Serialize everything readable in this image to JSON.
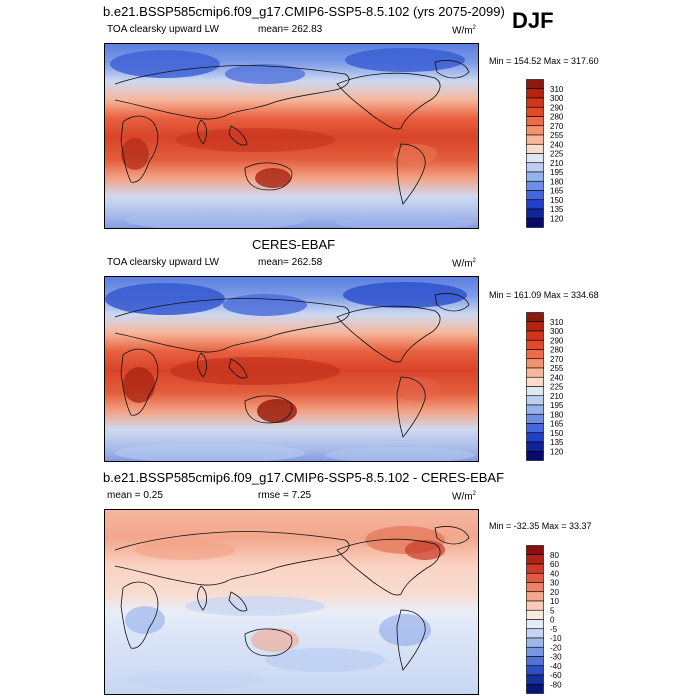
{
  "season": "DJF",
  "panels": [
    {
      "title": "b.e21.BSSP585cmip6.f09_g17.CMIP6-SSP5-8.5.102 (yrs 2075-2099)",
      "variable": "TOA clearsky upward LW",
      "mean_label": "mean= 262.83",
      "units": "W/m",
      "units_sup": "2",
      "minmax": "Min = 154.52 Max = 317.60"
    },
    {
      "title": "CERES-EBAF",
      "variable": "TOA clearsky upward LW",
      "mean_label": "mean= 262.58",
      "units": "W/m",
      "units_sup": "2",
      "minmax": "Min = 161.09 Max = 334.68"
    },
    {
      "title": "b.e21.BSSP585cmip6.f09_g17.CMIP6-SSP5-8.5.102 - CERES-EBAF",
      "variable": "mean =   0.25",
      "mean_label": "rmse =   7.25",
      "units": "W/m",
      "units_sup": "2",
      "minmax": "Min = -32.35 Max =  33.37"
    }
  ],
  "chart_data": [
    {
      "type": "heatmap",
      "title": "b.e21.BSSP585cmip6.f09_g17.CMIP6-SSP5-8.5.102 (yrs 2075-2099)",
      "field": "TOA clearsky upward LW",
      "mean": 262.83,
      "min": 154.52,
      "max": 317.6,
      "units": "W/m2",
      "colorbar_levels": [
        310,
        300,
        290,
        280,
        270,
        255,
        240,
        225,
        210,
        195,
        180,
        165,
        150,
        135,
        120
      ],
      "colorbar_colors": [
        "#8c1a0f",
        "#b52412",
        "#d0351d",
        "#e2482a",
        "#ee6a48",
        "#f4916f",
        "#f8b79d",
        "#fbdcc8",
        "#dfe7f5",
        "#bccff2",
        "#97b3ee",
        "#6f8fe6",
        "#4566dd",
        "#2340c8",
        "#10249a",
        "#050c6b"
      ]
    },
    {
      "type": "heatmap",
      "title": "CERES-EBAF",
      "field": "TOA clearsky upward LW",
      "mean": 262.58,
      "min": 161.09,
      "max": 334.68,
      "units": "W/m2",
      "colorbar_levels": [
        310,
        300,
        290,
        280,
        270,
        255,
        240,
        225,
        210,
        195,
        180,
        165,
        150,
        135,
        120
      ],
      "colorbar_colors": [
        "#8c1a0f",
        "#b52412",
        "#d0351d",
        "#e2482a",
        "#ee6a48",
        "#f4916f",
        "#f8b79d",
        "#fbdcc8",
        "#dfe7f5",
        "#bccff2",
        "#97b3ee",
        "#6f8fe6",
        "#4566dd",
        "#2340c8",
        "#10249a",
        "#050c6b"
      ]
    },
    {
      "type": "heatmap",
      "title": "b.e21.BSSP585cmip6.f09_g17.CMIP6-SSP5-8.5.102 - CERES-EBAF",
      "field": "difference",
      "mean": 0.25,
      "rmse": 7.25,
      "min": -32.35,
      "max": 33.37,
      "units": "W/m2",
      "colorbar_levels": [
        80,
        60,
        40,
        30,
        20,
        10,
        5,
        0,
        -5,
        -10,
        -20,
        -30,
        -40,
        -60,
        -80
      ],
      "colorbar_colors": [
        "#8a0e0e",
        "#b0231b",
        "#cc3a2c",
        "#e05a45",
        "#ee8066",
        "#f6a88e",
        "#fbccba",
        "#fde8de",
        "#e3ebf8",
        "#c4d4f3",
        "#9fb8ec",
        "#7797e2",
        "#5172d6",
        "#2e4fc4",
        "#14309f",
        "#061778"
      ]
    }
  ]
}
